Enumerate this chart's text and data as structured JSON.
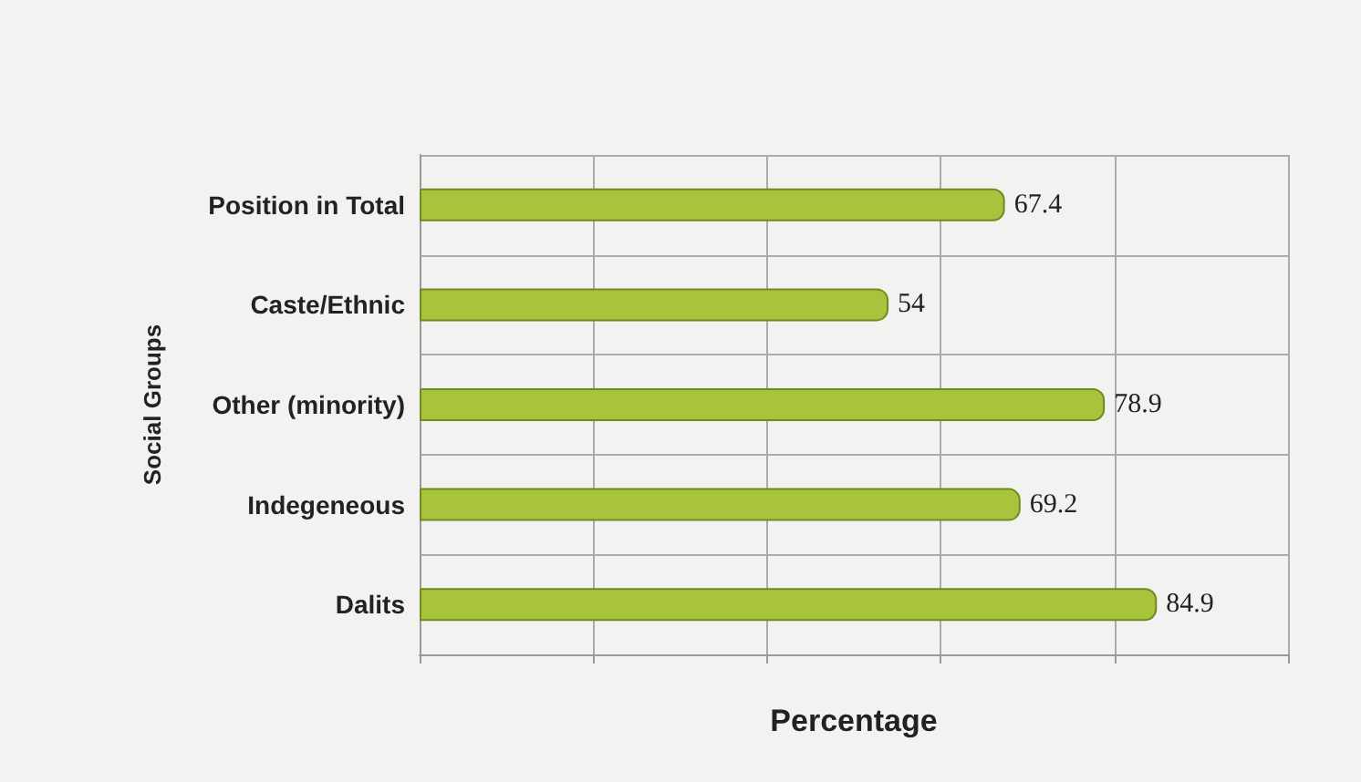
{
  "chart_data": {
    "type": "bar",
    "orientation": "horizontal",
    "xlabel": "Percentage",
    "ylabel": "Social Groups",
    "categories": [
      "Position in Total",
      "Caste/Ethnic",
      "Other (minority)",
      "Indegeneous",
      "Dalits"
    ],
    "values": [
      67.4,
      54,
      78.9,
      69.2,
      84.9
    ],
    "color": "#a8c43c",
    "data_labels": true,
    "xlim": [
      0,
      100
    ],
    "xticks": [
      {
        "value": 0,
        "label": null
      },
      {
        "value": 20,
        "label": null
      },
      {
        "value": 40,
        "label": null
      },
      {
        "value": 60,
        "label": null
      },
      {
        "value": 80,
        "label": null
      },
      {
        "value": 100,
        "label": null
      }
    ],
    "tick_labels": "y",
    "grid": true
  }
}
